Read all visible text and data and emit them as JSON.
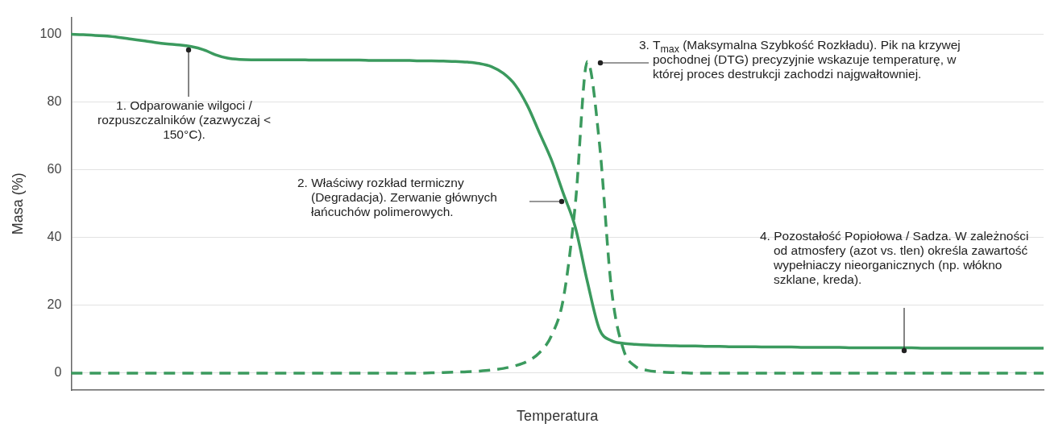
{
  "chart_data": {
    "type": "line",
    "xlabel": "Temperatura",
    "ylabel": "Masa (%)",
    "categories": [
      null,
      null,
      null,
      null,
      null,
      null,
      null,
      null,
      null,
      null,
      null,
      null,
      null,
      null,
      null,
      null,
      null,
      null,
      null,
      null,
      null,
      null,
      null,
      null,
      null,
      null,
      null,
      null,
      null,
      null,
      null,
      null,
      null,
      null,
      null,
      null,
      null,
      null,
      null,
      null,
      null,
      null,
      null,
      null,
      null,
      null,
      null,
      null,
      null,
      null,
      null,
      null,
      null,
      null,
      null,
      null,
      null,
      null,
      null,
      null,
      null,
      null,
      null,
      null,
      null,
      null,
      null,
      null,
      null,
      null,
      null,
      null,
      null,
      null,
      null,
      null,
      null,
      null,
      null,
      null,
      null,
      null
    ],
    "series": [
      {
        "color": "#3b9a5e",
        "line_style": "solid",
        "values": [
          100,
          99.9,
          99.7,
          99.5,
          99.1,
          98.6,
          98.1,
          97.6,
          97.2,
          96.9,
          96.4,
          95.5,
          94,
          93,
          92.6,
          92.5,
          92.5,
          92.5,
          92.5,
          92.5,
          92.4,
          92.4,
          92.4,
          92.4,
          92.4,
          92.3,
          92.3,
          92.3,
          92.3,
          92.2,
          92.2,
          92.1,
          92,
          91.8,
          91.4,
          90.5,
          88.5,
          85,
          79,
          71,
          63,
          53,
          43,
          27,
          13,
          9.6,
          8.8,
          8.5,
          8.3,
          8.2,
          8.1,
          8.0,
          8.0,
          7.9,
          7.9,
          7.8,
          7.8,
          7.8,
          7.7,
          7.7,
          7.7,
          7.6,
          7.6,
          7.6,
          7.6,
          7.5,
          7.5,
          7.5,
          7.5,
          7.5,
          7.5,
          7.4,
          7.4,
          7.4,
          7.4,
          7.4,
          7.4,
          7.4,
          7.4,
          7.4,
          7.4,
          7.4
        ]
      },
      {
        "color": "#3b9a5e",
        "line_style": "dashed",
        "values": [
          0,
          0,
          0,
          0,
          0,
          0,
          0,
          0,
          0,
          0,
          0,
          0,
          0,
          0,
          0,
          0,
          0,
          0,
          0,
          0,
          0,
          0,
          0,
          0,
          0,
          0,
          0,
          0,
          0,
          0,
          0.1,
          0.2,
          0.3,
          0.4,
          0.6,
          0.9,
          1.4,
          2.2,
          3.5,
          6,
          11,
          22,
          50,
          92,
          68,
          25,
          7,
          2,
          0.8,
          0.4,
          0.2,
          0.1,
          0,
          0,
          0,
          0,
          0,
          0,
          0,
          0,
          0,
          0,
          0,
          0,
          0,
          0,
          0,
          0,
          0,
          0,
          0,
          0,
          0,
          0,
          0,
          0,
          0,
          0,
          0,
          0,
          0,
          0
        ]
      }
    ],
    "ylim": [
      -5,
      105
    ],
    "yticks": [
      0,
      20,
      40,
      60,
      80,
      100
    ],
    "grid": "y",
    "legend": false,
    "marker": "none",
    "annotations": [
      "1. Odparowanie wilgoci / rozpuszczalników (zazwyczaj < 150°C).",
      "2. Właściwy rozkład termiczny (Degradacja). Zerwanie głównych łańcuchów polimerowych.",
      "3. T$_{max}$ (Maksymalna Szybkość Rozkładu). Pik na krzywej pochodnej (DTG) precyzyjnie wskazuje temperaturę, w której proces destrukcji zachodzi najgwałtowniej.",
      "4. Pozostałość Popiołowa / Sadza. W zależności od atmosfery (azot vs. tlen) określa zawartość wypełniaczy nieorganicznych (np. włókno szklane, kreda)."
    ]
  }
}
